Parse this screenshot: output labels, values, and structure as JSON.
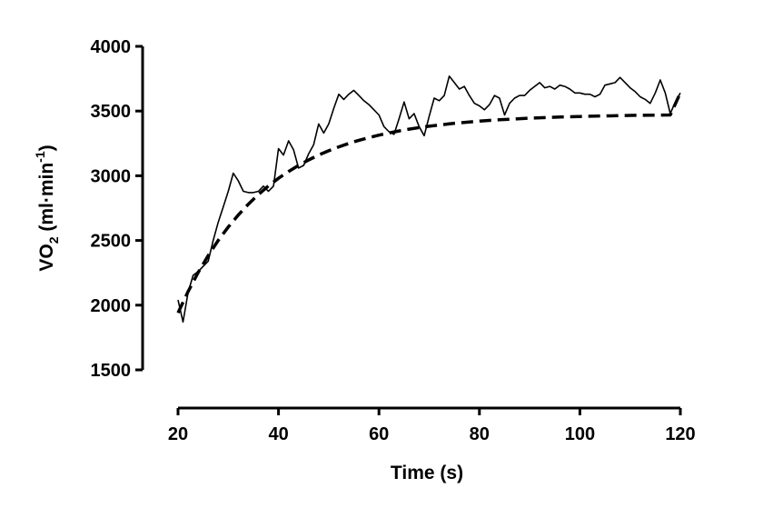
{
  "chart_data": {
    "type": "line",
    "xlabel": "Time (s)",
    "ylabel_main": "VO",
    "ylabel_sub": "2",
    "ylabel_unit": " (ml·min",
    "ylabel_sup": "-1",
    "ylabel_close": ")",
    "xlim": [
      20,
      120
    ],
    "ylim": [
      1500,
      4000
    ],
    "xticks": [
      20,
      40,
      60,
      80,
      100,
      120
    ],
    "yticks": [
      1500,
      2000,
      2500,
      3000,
      3500,
      4000
    ],
    "grid": false,
    "legend": "none",
    "series": [
      {
        "style": "solid",
        "color": "#000000",
        "x": [
          20,
          21,
          22,
          23,
          24,
          25,
          26,
          27,
          28,
          29,
          30,
          31,
          32,
          33,
          34,
          35,
          36,
          37,
          38,
          39,
          40,
          41,
          42,
          43,
          44,
          45,
          46,
          47,
          48,
          49,
          50,
          51,
          52,
          53,
          54,
          55,
          56,
          57,
          58,
          59,
          60,
          61,
          62,
          63,
          64,
          65,
          66,
          67,
          68,
          69,
          70,
          71,
          72,
          73,
          74,
          75,
          76,
          77,
          78,
          79,
          80,
          81,
          82,
          83,
          84,
          85,
          86,
          87,
          88,
          89,
          90,
          91,
          92,
          93,
          94,
          95,
          96,
          97,
          98,
          99,
          100,
          101,
          102,
          103,
          104,
          105,
          106,
          107,
          108,
          109,
          110,
          111,
          112,
          113,
          114,
          115,
          116,
          117,
          118,
          119,
          120
        ],
        "y": [
          2040,
          1870,
          2100,
          2230,
          2260,
          2300,
          2340,
          2500,
          2640,
          2760,
          2880,
          3020,
          2960,
          2880,
          2870,
          2870,
          2880,
          2920,
          2880,
          2920,
          3210,
          3160,
          3270,
          3200,
          3060,
          3080,
          3170,
          3240,
          3400,
          3330,
          3400,
          3520,
          3630,
          3590,
          3630,
          3660,
          3620,
          3580,
          3550,
          3510,
          3470,
          3380,
          3340,
          3320,
          3440,
          3570,
          3440,
          3480,
          3380,
          3310,
          3460,
          3600,
          3580,
          3620,
          3770,
          3720,
          3670,
          3690,
          3620,
          3560,
          3540,
          3510,
          3550,
          3620,
          3600,
          3470,
          3560,
          3600,
          3620,
          3620,
          3660,
          3690,
          3720,
          3680,
          3690,
          3670,
          3700,
          3690,
          3670,
          3640,
          3640,
          3630,
          3630,
          3610,
          3630,
          3700,
          3710,
          3720,
          3760,
          3720,
          3680,
          3650,
          3610,
          3590,
          3560,
          3640,
          3740,
          3640,
          3480,
          3570,
          3640
        ]
      },
      {
        "style": "dashed",
        "color": "#000000",
        "x": [
          20,
          22,
          24,
          26,
          28,
          30,
          32,
          34,
          36,
          38,
          40,
          42,
          44,
          46,
          48,
          50,
          52,
          54,
          56,
          58,
          60,
          62,
          64,
          66,
          68,
          70,
          72,
          74,
          76,
          78,
          80,
          82,
          84,
          86,
          88,
          90,
          92,
          94,
          96,
          98,
          100,
          102,
          104,
          106,
          108,
          110,
          112,
          114,
          116,
          118,
          120
        ],
        "y": [
          1940,
          2105,
          2252,
          2383,
          2500,
          2604,
          2697,
          2780,
          2855,
          2921,
          2980,
          3033,
          3080,
          3122,
          3160,
          3193,
          3223,
          3250,
          3274,
          3295,
          3314,
          3331,
          3346,
          3360,
          3372,
          3383,
          3392,
          3401,
          3409,
          3416,
          3422,
          3428,
          3433,
          3437,
          3441,
          3445,
          3448,
          3451,
          3454,
          3456,
          3458,
          3460,
          3462,
          3463,
          3465,
          3466,
          3467,
          3468,
          3469,
          3470,
          3640
        ]
      }
    ]
  }
}
